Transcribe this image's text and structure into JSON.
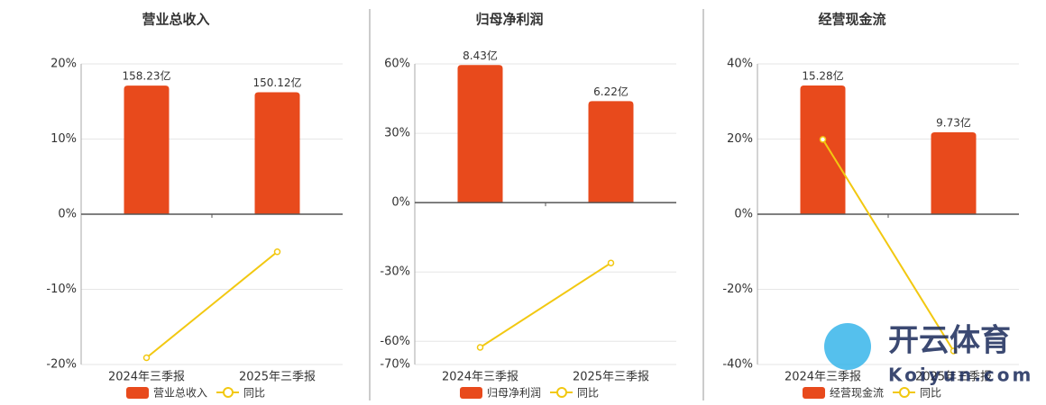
{
  "chart_data": [
    {
      "type": "bar-line",
      "title": "营业总收入",
      "categories": [
        "2024年三季报",
        "2025年三季报"
      ],
      "series": [
        {
          "name": "营业总收入",
          "color": "#e84a1c",
          "values": [
            158.23,
            150.12
          ],
          "value_labels": [
            "158.23亿",
            "150.12亿"
          ],
          "axis": "y2"
        },
        {
          "name": "同比",
          "color": "#f2c811",
          "values": [
            -19.1,
            -5.0
          ]
        }
      ],
      "ylim": [
        -20,
        20
      ],
      "yticks": [
        {
          "value": -20,
          "label": "-20%"
        },
        {
          "value": -10,
          "label": "-10%"
        },
        {
          "value": 0,
          "label": "0%"
        },
        {
          "value": 10,
          "label": "10%"
        },
        {
          "value": 20,
          "label": "20%"
        }
      ],
      "y2lim": [
        -185,
        185
      ],
      "grid": true,
      "legend": "bottom"
    },
    {
      "type": "bar-line",
      "title": "归母净利润",
      "categories": [
        "2024年三季报",
        "2025年三季报"
      ],
      "series": [
        {
          "name": "归母净利润",
          "color": "#e84a1c",
          "values": [
            8.43,
            6.22
          ],
          "value_labels": [
            "8.43亿",
            "6.22亿"
          ],
          "axis": "y2"
        },
        {
          "name": "同比",
          "color": "#f2c811",
          "values": [
            -62.6,
            -26.1
          ]
        }
      ],
      "ylim": [
        -70,
        60
      ],
      "yticks": [
        {
          "value": -70,
          "label": "-70%"
        },
        {
          "value": -60,
          "label": "-60%"
        },
        {
          "value": -30,
          "label": "-30%"
        },
        {
          "value": 0,
          "label": "0%"
        },
        {
          "value": 30,
          "label": "30%"
        },
        {
          "value": 60,
          "label": "60%"
        }
      ],
      "y2lim": [
        -9.9,
        8.5
      ],
      "grid": true,
      "legend": "bottom"
    },
    {
      "type": "bar-line",
      "title": "经营现金流",
      "categories": [
        "2024年三季报",
        "2025年三季报"
      ],
      "series": [
        {
          "name": "经营现金流",
          "color": "#e84a1c",
          "values": [
            15.28,
            9.73
          ],
          "value_labels": [
            "15.28亿",
            "9.73亿"
          ],
          "axis": "y2"
        },
        {
          "name": "同比",
          "color": "#f2c811",
          "values": [
            19.9,
            -36.4
          ]
        }
      ],
      "ylim": [
        -40,
        40
      ],
      "yticks": [
        {
          "value": -40,
          "label": "-40%"
        },
        {
          "value": -20,
          "label": "-20%"
        },
        {
          "value": 0,
          "label": "0%"
        },
        {
          "value": 20,
          "label": "20%"
        },
        {
          "value": 40,
          "label": "40%"
        }
      ],
      "y2lim": [
        -17.85,
        17.85
      ],
      "grid": true,
      "legend": "bottom"
    }
  ],
  "watermark": {
    "brand": "开云体育",
    "site": "Koiyun.com"
  }
}
